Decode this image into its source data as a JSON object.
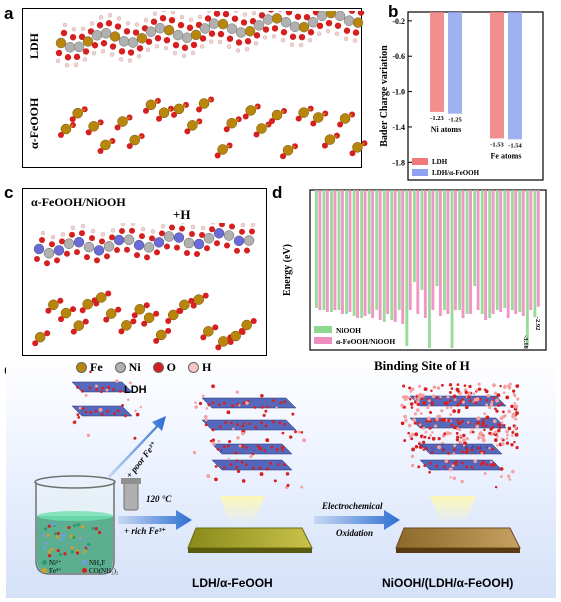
{
  "panels": {
    "a": {
      "letter": "a",
      "label_top": "LDH",
      "label_bottom": "α-FeOOH"
    },
    "b": {
      "letter": "b"
    },
    "c": {
      "letter": "c",
      "title": "α-FeOOH/NiOOH",
      "plus_h": "+H"
    },
    "d": {
      "letter": "d"
    },
    "e": {
      "letter": "e",
      "binding_title": "Binding Site of H",
      "legend_atoms": [
        {
          "label": "Fe",
          "color": "#b8860b"
        },
        {
          "label": "Ni",
          "color": "#b0b0b0"
        },
        {
          "label": "O",
          "color": "#d62020"
        },
        {
          "label": "H",
          "color": "#f4c6c6"
        }
      ],
      "ldh_label": "LDH",
      "poor_fe": "+ poor Fe³⁺",
      "temp": "120 °C",
      "rich_fe": "+ rich Fe³⁺",
      "electro1": "Electrochemical",
      "electro2": "Oxidation",
      "product1": "LDH/α-FeOOH",
      "product2": "NiOOH/(LDH/α-FeOOH)",
      "beaker_legend": [
        "Ni²⁺",
        "NH₄F",
        "Fe³⁺",
        "CO(NH₂)₂"
      ]
    }
  },
  "chart_data": [
    {
      "type": "bar",
      "panel": "b",
      "ylabel": "Bader Charge variation",
      "ylim": [
        -2.0,
        -0.1
      ],
      "yticks": [
        -0.2,
        -0.6,
        -1.0,
        -1.4,
        -1.8
      ],
      "categories": [
        "Ni atoms",
        "Fe atoms"
      ],
      "series": [
        {
          "name": "LDH",
          "values": [
            -1.23,
            -1.53
          ],
          "color": "#f07a7a"
        },
        {
          "name": "LDH/α-FeOOH",
          "values": [
            -1.25,
            -1.54
          ],
          "color": "#8fa3f0"
        }
      ],
      "data_labels": [
        [
          "-1.23",
          "-1.25"
        ],
        [
          "-1.53",
          "-1.54"
        ]
      ],
      "legend_position": "bottom-left"
    },
    {
      "type": "bar",
      "panel": "d",
      "ylabel": "Energy (eV)",
      "ylim": [
        -4.0,
        0.0
      ],
      "yticks": [
        0,
        -1,
        -2,
        -3,
        -4
      ],
      "series": [
        {
          "name": "NiOOH",
          "color": "#8fd68f",
          "values": [
            -2.95,
            -3.0,
            -3.05,
            -3.0,
            -3.1,
            -3.15,
            -3.2,
            -3.1,
            -3.0,
            -3.3,
            -3.25,
            -3.0,
            -3.9,
            -2.3,
            -2.5,
            -3.95,
            -2.4,
            -3.0,
            -3.95,
            -3.0,
            -3.1,
            -2.4,
            -3.1,
            -3.2,
            -3.0,
            -2.95,
            -3.0,
            -3.05,
            -3.9,
            -3.18
          ]
        },
        {
          "name": "α-FeOOH/NiOOH",
          "color": "#f08cc0",
          "values": [
            -3.0,
            -3.05,
            -3.0,
            -3.1,
            -3.05,
            -3.2,
            -3.15,
            -3.2,
            -3.25,
            -3.1,
            -3.3,
            -3.35,
            -3.0,
            -3.1,
            -3.2,
            -3.0,
            -3.15,
            -3.1,
            -3.0,
            -3.2,
            -3.1,
            -3.0,
            -3.25,
            -3.1,
            -3.05,
            -3.2,
            -3.1,
            -3.15,
            -3.0,
            -2.92
          ]
        }
      ],
      "annotations": [
        "-3.18",
        "-2.92"
      ],
      "legend_position": "bottom-left"
    }
  ]
}
